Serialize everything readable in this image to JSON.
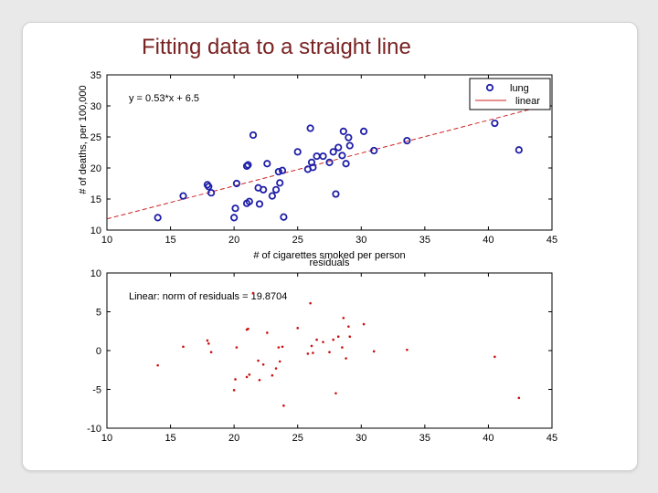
{
  "slide": {
    "title": "Fitting data to a straight line"
  },
  "colors": {
    "title": "#7a2323",
    "markers": "#1f1fa8",
    "fit_line": "#cc2222",
    "residuals": "#cc1111",
    "axes": "#000000"
  },
  "chart_data": [
    {
      "type": "scatter",
      "title": "",
      "xlabel": "# of cigarettes smoked  per person",
      "ylabel": "# of deaths, per 100,000",
      "xlim": [
        10,
        45
      ],
      "ylim": [
        10,
        35
      ],
      "xticks": [
        10,
        15,
        20,
        25,
        30,
        35,
        40,
        45
      ],
      "yticks": [
        10,
        15,
        20,
        25,
        30,
        35
      ],
      "annotation": "y = 0.53*x + 6.5",
      "fit": {
        "slope": 0.53,
        "intercept": 6.5
      },
      "legend": {
        "position": "top-right",
        "entries": [
          "lung",
          "linear"
        ]
      },
      "series": [
        {
          "name": "lung",
          "marker": "circle",
          "points": [
            [
              14.0,
              12.0
            ],
            [
              16.0,
              15.5
            ],
            [
              17.9,
              17.3
            ],
            [
              18.0,
              17.0
            ],
            [
              18.2,
              16.0
            ],
            [
              20.0,
              12.0
            ],
            [
              20.1,
              13.5
            ],
            [
              20.2,
              17.5
            ],
            [
              21.0,
              20.3
            ],
            [
              21.1,
              20.5
            ],
            [
              21.0,
              14.3
            ],
            [
              21.2,
              14.6
            ],
            [
              21.5,
              25.3
            ],
            [
              21.9,
              16.8
            ],
            [
              22.0,
              14.2
            ],
            [
              22.3,
              16.5
            ],
            [
              22.6,
              20.7
            ],
            [
              23.0,
              15.5
            ],
            [
              23.3,
              16.5
            ],
            [
              23.6,
              17.6
            ],
            [
              23.5,
              19.4
            ],
            [
              23.8,
              19.6
            ],
            [
              23.9,
              12.1
            ],
            [
              25.0,
              22.6
            ],
            [
              25.8,
              19.8
            ],
            [
              26.0,
              26.4
            ],
            [
              26.1,
              20.9
            ],
            [
              26.2,
              20.1
            ],
            [
              26.5,
              21.9
            ],
            [
              27.0,
              21.9
            ],
            [
              27.5,
              20.9
            ],
            [
              27.8,
              22.6
            ],
            [
              28.0,
              15.8
            ],
            [
              28.2,
              23.3
            ],
            [
              28.5,
              22.0
            ],
            [
              28.6,
              25.9
            ],
            [
              28.8,
              20.7
            ],
            [
              29.0,
              24.9
            ],
            [
              29.1,
              23.6
            ],
            [
              30.2,
              25.9
            ],
            [
              31.0,
              22.8
            ],
            [
              33.6,
              24.4
            ],
            [
              40.5,
              27.2
            ],
            [
              42.4,
              22.9
            ]
          ]
        },
        {
          "name": "linear",
          "style": "dashed-line"
        }
      ]
    },
    {
      "type": "scatter",
      "title": "residuals",
      "xlabel": "",
      "ylabel": "",
      "xlim": [
        10,
        45
      ],
      "ylim": [
        -10,
        10
      ],
      "xticks": [
        10,
        15,
        20,
        25,
        30,
        35,
        40,
        45
      ],
      "yticks": [
        -10,
        -5,
        0,
        5,
        10
      ],
      "annotation": "Linear: norm of residuals = 19.8704",
      "series": [
        {
          "name": "",
          "marker": "dot",
          "points": [
            [
              14.0,
              -1.9
            ],
            [
              16.0,
              0.5
            ],
            [
              17.9,
              1.3
            ],
            [
              18.0,
              0.9
            ],
            [
              18.2,
              -0.2
            ],
            [
              20.0,
              -5.1
            ],
            [
              20.1,
              -3.7
            ],
            [
              20.2,
              0.4
            ],
            [
              21.0,
              2.7
            ],
            [
              21.1,
              2.8
            ],
            [
              21.0,
              -3.4
            ],
            [
              21.2,
              -3.1
            ],
            [
              21.5,
              7.4
            ],
            [
              21.9,
              -1.3
            ],
            [
              22.0,
              -3.8
            ],
            [
              22.3,
              -1.8
            ],
            [
              22.6,
              2.3
            ],
            [
              23.0,
              -3.2
            ],
            [
              23.3,
              -2.3
            ],
            [
              23.6,
              -1.4
            ],
            [
              23.5,
              0.4
            ],
            [
              23.8,
              0.5
            ],
            [
              23.9,
              -7.1
            ],
            [
              25.0,
              2.9
            ],
            [
              25.8,
              -0.4
            ],
            [
              26.0,
              6.1
            ],
            [
              26.1,
              0.6
            ],
            [
              26.2,
              -0.3
            ],
            [
              26.5,
              1.4
            ],
            [
              27.0,
              1.1
            ],
            [
              27.5,
              -0.2
            ],
            [
              27.8,
              1.4
            ],
            [
              28.0,
              -5.5
            ],
            [
              28.2,
              1.8
            ],
            [
              28.5,
              0.4
            ],
            [
              28.6,
              4.2
            ],
            [
              28.8,
              -1.0
            ],
            [
              29.0,
              3.1
            ],
            [
              29.1,
              1.8
            ],
            [
              30.2,
              3.4
            ],
            [
              31.0,
              -0.1
            ],
            [
              33.6,
              0.1
            ],
            [
              40.5,
              -0.8
            ],
            [
              42.4,
              -6.1
            ]
          ]
        }
      ]
    }
  ]
}
